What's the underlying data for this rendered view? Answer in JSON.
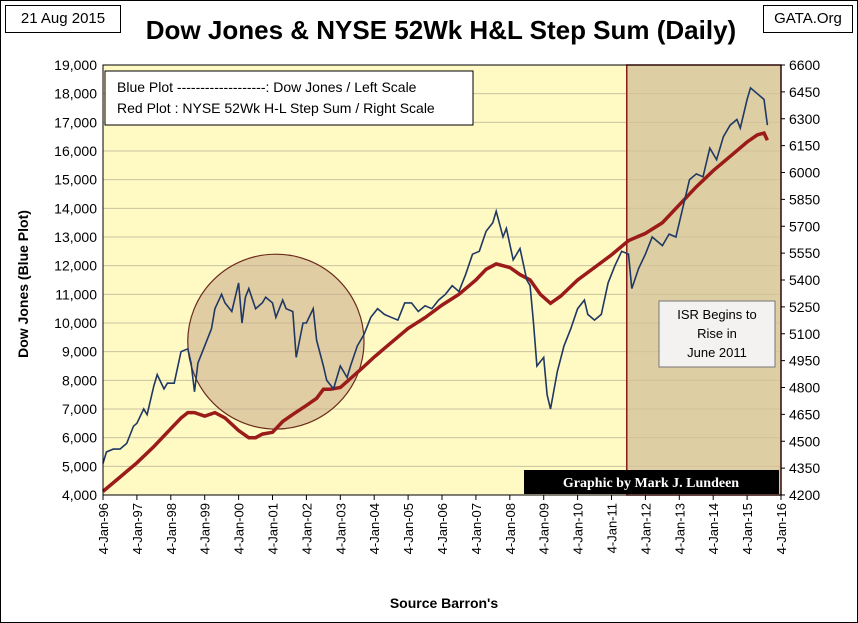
{
  "date_label": "21 Aug 2015",
  "source_label": "GATA.Org",
  "colors": {
    "plot_bg": "#fff9c4",
    "grid": "#c9c4a0",
    "dow_line": "#1f3864",
    "step_line": "#9b1b1b",
    "highlight_fill": "#d6c39b",
    "highlight_border": "#8b1a1a",
    "circle_fill": "#c9a98a",
    "circle_border": "#6b2a1a",
    "credit_bg": "#000000",
    "credit_text": "#ffffff"
  },
  "chart_data": {
    "type": "line",
    "title": "Dow Jones & NYSE 52Wk H&L Step Sum (Daily)",
    "xlabel": "Source Barron's",
    "ylabel": "Dow Jones   (Blue Plot)",
    "ylim": [
      4000,
      19000
    ],
    "y2lim": [
      4200,
      6600
    ],
    "y_ticks": [
      "4,000",
      "5,000",
      "6,000",
      "7,000",
      "8,000",
      "9,000",
      "10,000",
      "11,000",
      "12,000",
      "13,000",
      "14,000",
      "15,000",
      "16,000",
      "17,000",
      "18,000",
      "19,000"
    ],
    "y2_ticks": [
      "4200",
      "4350",
      "4500",
      "4650",
      "4800",
      "4950",
      "5100",
      "5250",
      "5400",
      "5550",
      "5700",
      "5850",
      "6000",
      "6150",
      "6300",
      "6450",
      "6600"
    ],
    "x_ticks": [
      "4-Jan-96",
      "4-Jan-97",
      "4-Jan-98",
      "4-Jan-99",
      "4-Jan-00",
      "4-Jan-01",
      "4-Jan-02",
      "4-Jan-03",
      "4-Jan-04",
      "4-Jan-05",
      "4-Jan-06",
      "4-Jan-07",
      "4-Jan-08",
      "4-Jan-09",
      "4-Jan-10",
      "4-Jan-11",
      "4-Jan-12",
      "4-Jan-13",
      "4-Jan-14",
      "4-Jan-15",
      "4-Jan-16"
    ],
    "xlim": [
      1996.0,
      2016.0
    ],
    "legend": {
      "line1": "Blue Plot -------------------:  Dow Jones / Left Scale",
      "line2": "Red Plot : NYSE 52Wk H-L Step Sum / Right Scale"
    },
    "annotation": [
      "ISR Begins to",
      "Rise in",
      "June 2011"
    ],
    "credit": "Graphic by Mark J. Lundeen",
    "highlight_start": 2011.45,
    "circle": {
      "x_center": 2001.1,
      "y_center": 9350,
      "x_radius": 2.6,
      "y_radius": 3050
    },
    "series": [
      {
        "name": "Dow Jones",
        "axis": "left",
        "x": [
          1996.0,
          1996.1,
          1996.3,
          1996.5,
          1996.7,
          1996.9,
          1997.0,
          1997.2,
          1997.3,
          1997.5,
          1997.6,
          1997.8,
          1997.9,
          1998.1,
          1998.3,
          1998.5,
          1998.6,
          1998.7,
          1998.8,
          1999.0,
          1999.2,
          1999.3,
          1999.5,
          1999.6,
          1999.8,
          2000.0,
          2000.1,
          2000.2,
          2000.3,
          2000.5,
          2000.7,
          2000.8,
          2001.0,
          2001.1,
          2001.3,
          2001.4,
          2001.6,
          2001.7,
          2001.9,
          2002.0,
          2002.2,
          2002.3,
          2002.5,
          2002.6,
          2002.8,
          2003.0,
          2003.2,
          2003.3,
          2003.5,
          2003.7,
          2003.9,
          2004.1,
          2004.3,
          2004.5,
          2004.7,
          2004.9,
          2005.1,
          2005.3,
          2005.5,
          2005.7,
          2005.9,
          2006.1,
          2006.3,
          2006.5,
          2006.7,
          2006.9,
          2007.1,
          2007.3,
          2007.5,
          2007.6,
          2007.8,
          2007.9,
          2008.1,
          2008.3,
          2008.5,
          2008.6,
          2008.7,
          2008.8,
          2009.0,
          2009.1,
          2009.2,
          2009.4,
          2009.6,
          2009.8,
          2010.0,
          2010.2,
          2010.3,
          2010.5,
          2010.7,
          2010.9,
          2011.1,
          2011.3,
          2011.5,
          2011.6,
          2011.8,
          2012.0,
          2012.2,
          2012.3,
          2012.5,
          2012.7,
          2012.9,
          2013.1,
          2013.3,
          2013.5,
          2013.7,
          2013.9,
          2014.1,
          2014.3,
          2014.5,
          2014.7,
          2014.8,
          2015.0,
          2015.1,
          2015.3,
          2015.5,
          2015.6
        ],
        "values": [
          5100,
          5500,
          5600,
          5600,
          5800,
          6400,
          6500,
          7000,
          6800,
          7800,
          8200,
          7700,
          7900,
          7900,
          9000,
          9100,
          8600,
          7600,
          8600,
          9200,
          9800,
          10500,
          11000,
          10700,
          10400,
          11400,
          10000,
          10900,
          11200,
          10500,
          10700,
          10900,
          10700,
          10200,
          10800,
          10500,
          10400,
          8800,
          10000,
          10000,
          10500,
          9400,
          8500,
          8000,
          7700,
          8500,
          8100,
          8500,
          9200,
          9600,
          10200,
          10500,
          10300,
          10200,
          10100,
          10700,
          10700,
          10400,
          10600,
          10500,
          10800,
          11000,
          11300,
          11100,
          11700,
          12400,
          12500,
          13200,
          13500,
          13900,
          13000,
          13300,
          12200,
          12600,
          11500,
          11300,
          10000,
          8500,
          8800,
          7500,
          7000,
          8300,
          9200,
          9800,
          10500,
          10800,
          10300,
          10100,
          10300,
          11400,
          12000,
          12500,
          12400,
          11200,
          11900,
          12400,
          13000,
          12900,
          12700,
          13100,
          13000,
          14000,
          15000,
          15200,
          15100,
          16100,
          15700,
          16500,
          16900,
          17100,
          16800,
          17800,
          18200,
          18000,
          17800,
          16900
        ]
      },
      {
        "name": "NYSE 52Wk H-L Step Sum",
        "axis": "right",
        "x": [
          1996.0,
          1996.5,
          1997.0,
          1997.5,
          1998.0,
          1998.3,
          1998.5,
          1998.7,
          1999.0,
          1999.3,
          1999.6,
          2000.0,
          2000.3,
          2000.5,
          2000.7,
          2001.0,
          2001.3,
          2001.6,
          2002.0,
          2002.3,
          2002.5,
          2002.7,
          2003.0,
          2003.3,
          2003.6,
          2004.0,
          2004.5,
          2005.0,
          2005.5,
          2006.0,
          2006.5,
          2007.0,
          2007.3,
          2007.6,
          2008.0,
          2008.3,
          2008.6,
          2008.9,
          2009.2,
          2009.5,
          2010.0,
          2010.5,
          2011.0,
          2011.5,
          2012.0,
          2012.5,
          2013.0,
          2013.5,
          2014.0,
          2014.5,
          2015.0,
          2015.3,
          2015.5,
          2015.6
        ],
        "values": [
          4220,
          4300,
          4380,
          4470,
          4570,
          4630,
          4660,
          4660,
          4640,
          4660,
          4630,
          4560,
          4520,
          4520,
          4540,
          4550,
          4610,
          4650,
          4700,
          4740,
          4790,
          4790,
          4800,
          4850,
          4900,
          4970,
          5050,
          5130,
          5190,
          5260,
          5320,
          5400,
          5460,
          5490,
          5470,
          5430,
          5400,
          5320,
          5270,
          5310,
          5400,
          5470,
          5540,
          5620,
          5660,
          5720,
          5820,
          5920,
          6010,
          6090,
          6170,
          6210,
          6220,
          6180
        ]
      }
    ]
  }
}
